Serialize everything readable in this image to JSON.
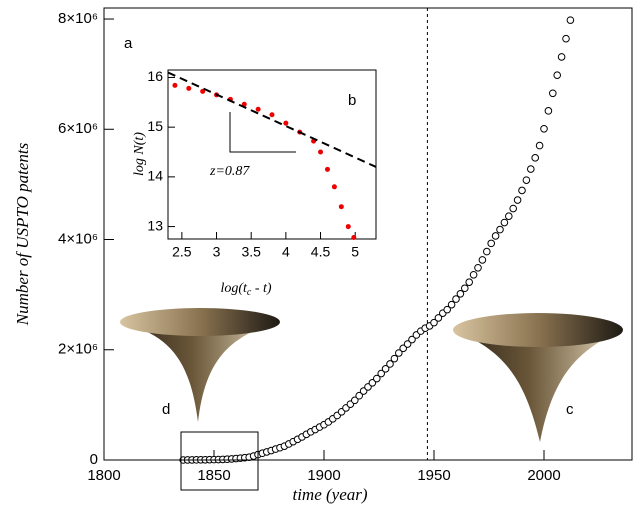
{
  "chart_data": [
    {
      "type": "scatter",
      "xlabel": "time (year)",
      "ylabel": "Number of USPTO patents",
      "x": [
        1836,
        1838,
        1840,
        1842,
        1844,
        1846,
        1848,
        1850,
        1852,
        1854,
        1856,
        1858,
        1860,
        1862,
        1864,
        1866,
        1868,
        1870,
        1872,
        1874,
        1876,
        1878,
        1880,
        1882,
        1884,
        1886,
        1888,
        1890,
        1892,
        1894,
        1896,
        1898,
        1900,
        1902,
        1904,
        1906,
        1908,
        1910,
        1912,
        1914,
        1916,
        1918,
        1920,
        1922,
        1924,
        1926,
        1928,
        1930,
        1932,
        1934,
        1936,
        1938,
        1940,
        1942,
        1944,
        1946,
        1948,
        1950,
        1952,
        1954,
        1956,
        1958,
        1960,
        1962,
        1964,
        1966,
        1968,
        1970,
        1972,
        1974,
        1976,
        1978,
        1980,
        1982,
        1984,
        1986,
        1988,
        1990,
        1992,
        1994,
        1996,
        1998,
        2000,
        2002,
        2004,
        2006,
        2008,
        2010,
        2012
      ],
      "values": [
        0,
        1000,
        1500,
        2500,
        3400,
        4300,
        5400,
        6900,
        8600,
        11000,
        14000,
        19000,
        26000,
        34000,
        42000,
        51000,
        72000,
        98000,
        123000,
        146000,
        171000,
        198000,
        223000,
        251000,
        291000,
        333000,
        375000,
        418000,
        466000,
        511000,
        552000,
        597000,
        640000,
        690000,
        748000,
        808000,
        875000,
        945000,
        1013000,
        1083000,
        1166000,
        1251000,
        1326000,
        1401000,
        1478000,
        1568000,
        1654000,
        1742000,
        1839000,
        1941000,
        2026000,
        2104000,
        2185000,
        2268000,
        2338000,
        2391000,
        2433000,
        2492000,
        2578000,
        2664000,
        2728000,
        2818000,
        2919000,
        3015000,
        3116000,
        3226000,
        3360000,
        3487000,
        3630000,
        3781000,
        3930000,
        4065000,
        4180000,
        4308000,
        4423000,
        4562000,
        4716000,
        4890000,
        5077000,
        5278000,
        5482000,
        5704000,
        6009000,
        6334000,
        6653000,
        6981000,
        7313000,
        7643000,
        7980000
      ],
      "color": "#000000",
      "xlim": [
        1800,
        2040
      ],
      "xticks": [
        1800,
        1850,
        1900,
        1950,
        2000
      ],
      "ylim": [
        0,
        8200000
      ],
      "yticks": [
        0,
        {
          "value": 2000000,
          "label": "2×10⁶"
        },
        {
          "value": 4000000,
          "label": "4×10⁶"
        },
        {
          "value": 6000000,
          "label": "6×10⁶"
        },
        {
          "value": 8000000,
          "label": "8×10⁶"
        }
      ],
      "vline": 1947,
      "panel_labels": [
        "a",
        "d",
        "c"
      ]
    },
    {
      "type": "scatter",
      "xlabel": [
        "log(t",
        "c",
        " - t)"
      ],
      "ylabel": "log N(t)",
      "series": [
        {
          "x": [
            2.4,
            2.6,
            2.8,
            3.0,
            3.2,
            3.4,
            3.6,
            3.8,
            4.0,
            4.2,
            4.4,
            4.5,
            4.6,
            4.7,
            4.8,
            4.9,
            4.98
          ],
          "values": [
            15.84,
            15.78,
            15.72,
            15.65,
            15.56,
            15.46,
            15.36,
            15.25,
            15.08,
            14.9,
            14.72,
            14.5,
            14.15,
            13.8,
            13.4,
            13.0,
            12.78
          ],
          "color": "#ee0000"
        },
        {
          "x": [
            2.3,
            5.3
          ],
          "values": [
            16.1,
            14.2
          ],
          "color": "#000000",
          "linestyle": "dashed"
        }
      ],
      "xlim": [
        2.3,
        5.3
      ],
      "xticks": [
        2.5,
        3,
        3.5,
        4,
        4.5,
        5
      ],
      "ylim": [
        12.75,
        16.15
      ],
      "yticks": [
        13,
        14,
        15,
        16
      ],
      "panel_label": "b",
      "annotation": "z=0.87"
    }
  ]
}
